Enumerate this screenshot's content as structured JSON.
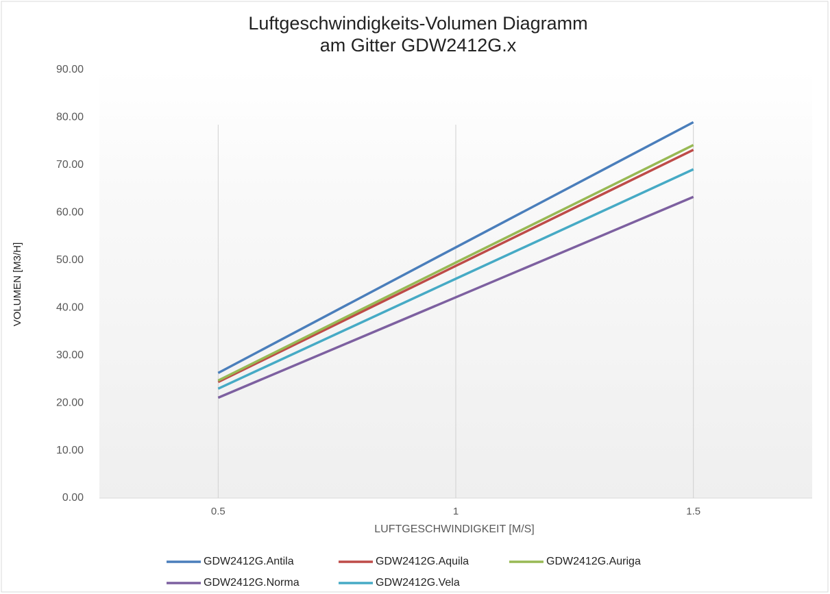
{
  "chart_data": {
    "type": "line",
    "title": [
      "Luftgeschwindigkeits-Volumen  Diagramm",
      "am Gitter GDW2412G.x"
    ],
    "x_label": "LUFTGESCHWINDIGKEIT [M/S]",
    "y_label": "VOLUMEN [M3/H]",
    "categories": [
      "0.5",
      "1",
      "1.5"
    ],
    "series": [
      {
        "name": "GDW2412G.Antila",
        "color": "#4a7ebb",
        "values": [
          26.3,
          52.7,
          79.0
        ]
      },
      {
        "name": "GDW2412G.Aquila",
        "color": "#be4b48",
        "values": [
          24.4,
          48.8,
          73.2
        ]
      },
      {
        "name": "GDW2412G.Auriga",
        "color": "#98b954",
        "values": [
          24.7,
          49.5,
          74.2
        ]
      },
      {
        "name": "GDW2412G.Norma",
        "color": "#7d60a0",
        "values": [
          21.1,
          42.2,
          63.3
        ]
      },
      {
        "name": "GDW2412G.Vela",
        "color": "#46aac5",
        "values": [
          23.0,
          46.1,
          69.1
        ]
      }
    ],
    "ylim": [
      0,
      90
    ],
    "yticks": [
      {
        "value": 0,
        "label": "0.00"
      },
      {
        "value": 10,
        "label": "10.00"
      },
      {
        "value": 20,
        "label": "20.00"
      },
      {
        "value": 30,
        "label": "30.00"
      },
      {
        "value": 40,
        "label": "40.00"
      },
      {
        "value": 50,
        "label": "50.00"
      },
      {
        "value": 60,
        "label": "60.00"
      },
      {
        "value": 70,
        "label": "70.00"
      },
      {
        "value": 80,
        "label": "80.00"
      },
      {
        "value": 90,
        "label": "90.00"
      }
    ],
    "grid": true,
    "legend": "bottom"
  }
}
